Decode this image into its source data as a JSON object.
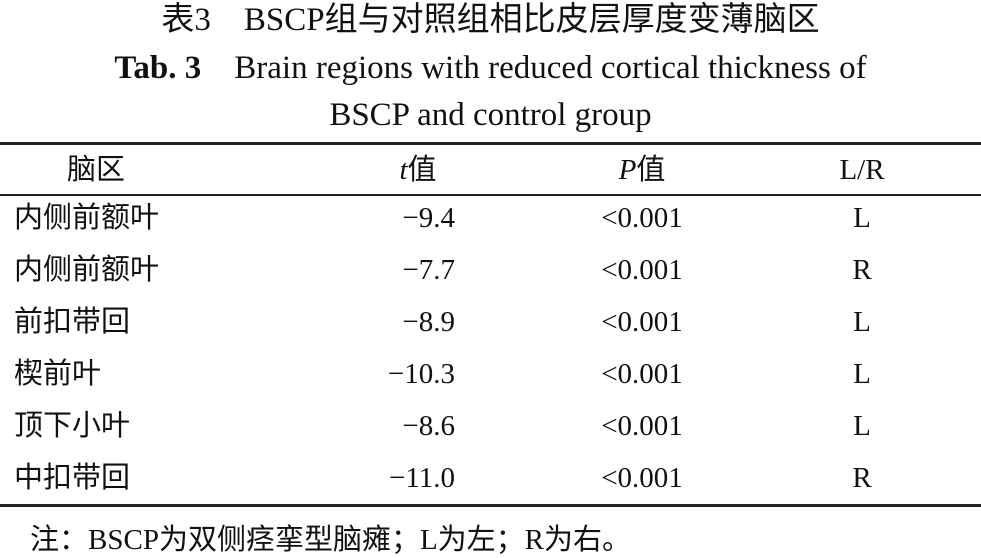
{
  "title": {
    "zh": "表3　BSCP组与对照组相比皮层厚度变薄脑区",
    "en_label": "Tab. 3",
    "en_line1": "Brain regions with reduced cortical thickness of",
    "en_line2": "BSCP and control group"
  },
  "table": {
    "header": [
      "脑区",
      [
        "t",
        "值"
      ],
      [
        "P",
        "值"
      ],
      "L/R"
    ],
    "rows": [
      [
        "内侧前额叶",
        "−9.4",
        "<0.001",
        "L"
      ],
      [
        "内侧前额叶",
        "−7.7",
        "<0.001",
        "R"
      ],
      [
        "前扣带回",
        "−8.9",
        "<0.001",
        "L"
      ],
      [
        "楔前叶",
        "−10.3",
        "<0.001",
        "L"
      ],
      [
        "顶下小叶",
        "−8.6",
        "<0.001",
        "L"
      ],
      [
        "中扣带回",
        "−11.0",
        "<0.001",
        "R"
      ]
    ]
  },
  "note": "注：BSCP为双侧痉挛型脑瘫；L为左；R为右。"
}
